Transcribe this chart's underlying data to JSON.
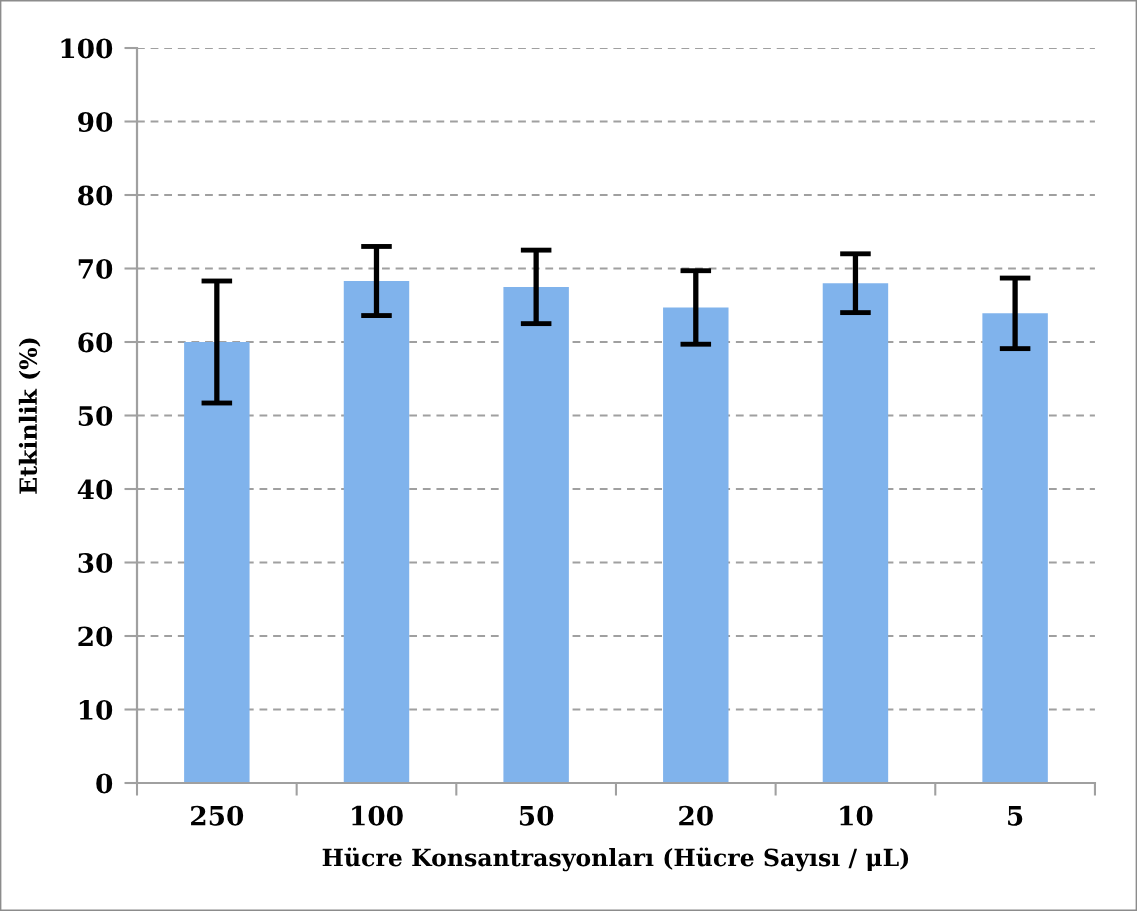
{
  "chart_data": {
    "type": "bar",
    "xlabel": "Hücre Konsantrasyonları (Hücre Sayısı / μL)",
    "ylabel": "Etkinlik (%)",
    "categories": [
      "250",
      "100",
      "50",
      "20",
      "10",
      "5"
    ],
    "values": [
      60,
      68.3,
      67.5,
      64.7,
      68,
      63.9
    ],
    "errors": [
      8.3,
      4.7,
      5,
      5,
      4,
      4.8
    ],
    "color": "#80b3ec",
    "ylim": [
      0,
      100
    ],
    "yticks": [
      0,
      10,
      20,
      30,
      40,
      50,
      60,
      70,
      80,
      90,
      100
    ],
    "grid": "y"
  }
}
